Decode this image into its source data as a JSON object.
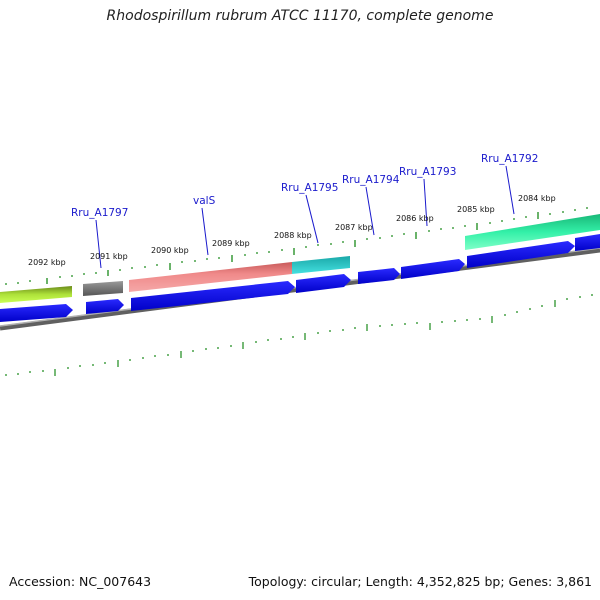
{
  "title": "Rhodospirillum rubrum ATCC 11170, complete genome",
  "footer": {
    "accession": "Accession: NC_007643",
    "summary": "Topology: circular; Length: 4,352,825 bp; Genes: 3,861"
  },
  "ticks": [
    {
      "label": "2092 kbp"
    },
    {
      "label": "2091 kbp"
    },
    {
      "label": "2090 kbp"
    },
    {
      "label": "2089 kbp"
    },
    {
      "label": "2088 kbp"
    },
    {
      "label": "2087 kbp"
    },
    {
      "label": "2086 kbp"
    },
    {
      "label": "2085 kbp"
    },
    {
      "label": "2084 kbp"
    }
  ],
  "gene_labels": [
    {
      "text": "Rru_A1797"
    },
    {
      "text": "valS"
    },
    {
      "text": "Rru_A1795"
    },
    {
      "text": "Rru_A1794"
    },
    {
      "text": "Rru_A1793"
    },
    {
      "text": "Rru_A1792"
    }
  ],
  "colors": {
    "cds": "#0000ee",
    "tick": "#1a8a1a",
    "backbone": "#808080",
    "label": "#1a1acc",
    "feature_green": "#88cc22",
    "feature_gray": "#707070",
    "feature_salmon": "#f08080",
    "feature_cyan": "#22cccc",
    "feature_mint": "#22ee99"
  }
}
